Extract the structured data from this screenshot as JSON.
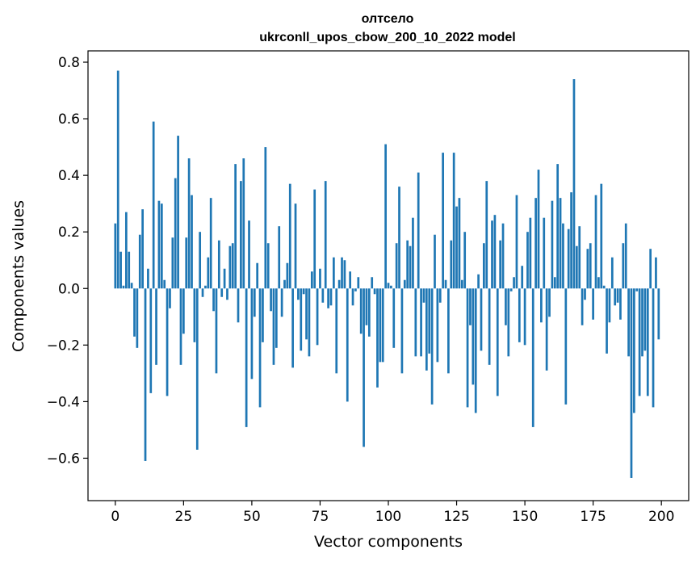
{
  "chart_data": {
    "type": "bar",
    "title": "олтсело",
    "subtitle": "ukrconll_upos_cbow_200_10_2022 model",
    "xlabel": "Vector components",
    "ylabel": "Components values",
    "xlim": [
      -10,
      210
    ],
    "ylim": [
      -0.75,
      0.84
    ],
    "xticks": [
      0,
      25,
      50,
      75,
      100,
      125,
      150,
      175,
      200
    ],
    "yticks": [
      -0.6,
      -0.4,
      -0.2,
      0.0,
      0.2,
      0.4,
      0.6,
      0.8
    ],
    "ytick_labels": [
      "−0.6",
      "−0.4",
      "−0.2",
      "0.0",
      "0.2",
      "0.4",
      "0.6",
      "0.8"
    ],
    "bar_color": "#1f77b4",
    "grid": false,
    "x": [
      0,
      1,
      2,
      3,
      4,
      5,
      6,
      7,
      8,
      9,
      10,
      11,
      12,
      13,
      14,
      15,
      16,
      17,
      18,
      19,
      20,
      21,
      22,
      23,
      24,
      25,
      26,
      27,
      28,
      29,
      30,
      31,
      32,
      33,
      34,
      35,
      36,
      37,
      38,
      39,
      40,
      41,
      42,
      43,
      44,
      45,
      46,
      47,
      48,
      49,
      50,
      51,
      52,
      53,
      54,
      55,
      56,
      57,
      58,
      59,
      60,
      61,
      62,
      63,
      64,
      65,
      66,
      67,
      68,
      69,
      70,
      71,
      72,
      73,
      74,
      75,
      76,
      77,
      78,
      79,
      80,
      81,
      82,
      83,
      84,
      85,
      86,
      87,
      88,
      89,
      90,
      91,
      92,
      93,
      94,
      95,
      96,
      97,
      98,
      99,
      100,
      101,
      102,
      103,
      104,
      105,
      106,
      107,
      108,
      109,
      110,
      111,
      112,
      113,
      114,
      115,
      116,
      117,
      118,
      119,
      120,
      121,
      122,
      123,
      124,
      125,
      126,
      127,
      128,
      129,
      130,
      131,
      132,
      133,
      134,
      135,
      136,
      137,
      138,
      139,
      140,
      141,
      142,
      143,
      144,
      145,
      146,
      147,
      148,
      149,
      150,
      151,
      152,
      153,
      154,
      155,
      156,
      157,
      158,
      159,
      160,
      161,
      162,
      163,
      164,
      165,
      166,
      167,
      168,
      169,
      170,
      171,
      172,
      173,
      174,
      175,
      176,
      177,
      178,
      179,
      180,
      181,
      182,
      183,
      184,
      185,
      186,
      187,
      188,
      189,
      190,
      191,
      192,
      193,
      194,
      195,
      196,
      197,
      198,
      199
    ],
    "values": [
      0.23,
      0.77,
      0.13,
      0.01,
      0.27,
      0.13,
      0.02,
      -0.17,
      -0.21,
      0.19,
      0.28,
      -0.61,
      0.07,
      -0.37,
      0.59,
      -0.27,
      0.31,
      0.3,
      0.03,
      -0.38,
      -0.07,
      0.18,
      0.39,
      0.54,
      -0.27,
      -0.16,
      0.18,
      0.46,
      0.33,
      -0.19,
      -0.57,
      0.2,
      -0.03,
      0.01,
      0.11,
      0.32,
      -0.08,
      -0.3,
      0.17,
      -0.03,
      0.07,
      -0.04,
      0.15,
      0.16,
      0.44,
      -0.12,
      0.38,
      0.46,
      -0.49,
      0.24,
      -0.32,
      -0.1,
      0.09,
      -0.42,
      -0.19,
      0.5,
      0.16,
      -0.08,
      -0.27,
      -0.21,
      0.22,
      -0.1,
      0.03,
      0.09,
      0.37,
      -0.28,
      0.3,
      -0.04,
      -0.22,
      -0.02,
      -0.18,
      -0.24,
      0.06,
      0.35,
      -0.2,
      0.07,
      -0.05,
      0.38,
      -0.07,
      -0.06,
      0.11,
      -0.3,
      0.03,
      0.11,
      0.1,
      -0.4,
      0.06,
      -0.06,
      -0.01,
      0.04,
      -0.16,
      -0.56,
      -0.13,
      -0.17,
      0.04,
      -0.02,
      -0.35,
      -0.26,
      -0.26,
      0.51,
      0.02,
      0.01,
      -0.21,
      0.16,
      0.36,
      -0.3,
      0.03,
      0.17,
      0.15,
      0.25,
      -0.24,
      0.41,
      -0.24,
      -0.05,
      -0.29,
      -0.23,
      -0.41,
      0.19,
      -0.26,
      -0.05,
      0.48,
      0.03,
      -0.3,
      0.17,
      0.48,
      0.29,
      0.32,
      0.03,
      0.2,
      -0.42,
      -0.13,
      -0.34,
      -0.44,
      0.05,
      -0.22,
      0.16,
      0.38,
      -0.27,
      0.24,
      0.26,
      -0.38,
      0.17,
      0.23,
      -0.13,
      -0.24,
      -0.01,
      0.04,
      0.33,
      -0.19,
      0.08,
      -0.2,
      0.2,
      0.25,
      -0.49,
      0.32,
      0.42,
      -0.12,
      0.25,
      -0.29,
      -0.1,
      0.31,
      0.04,
      0.44,
      0.32,
      0.23,
      -0.41,
      0.21,
      0.34,
      0.74,
      0.15,
      0.22,
      -0.13,
      -0.04,
      0.14,
      0.16,
      -0.11,
      0.33,
      0.04,
      0.37,
      0.01,
      -0.23,
      -0.12,
      0.11,
      -0.06,
      -0.05,
      -0.11,
      0.16,
      0.23,
      -0.24,
      -0.67,
      -0.44,
      -0.01,
      -0.38,
      -0.24,
      -0.22,
      -0.38,
      0.14,
      -0.42,
      0.11,
      -0.18
    ]
  }
}
